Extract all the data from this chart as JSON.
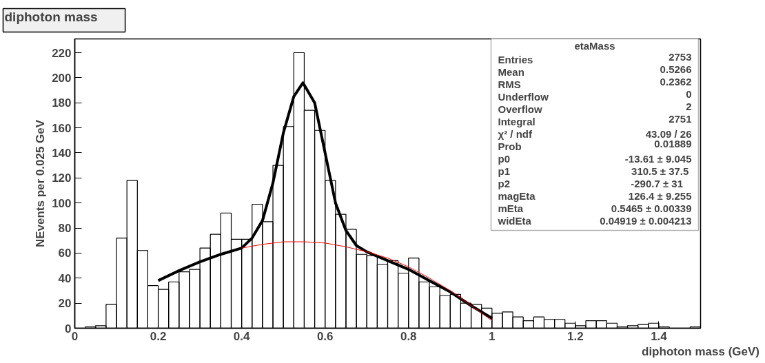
{
  "chart_data": {
    "type": "histogram",
    "title": "diphoton mass",
    "xlabel": "diphoton mass (GeV)",
    "ylabel": "NEvents per 0.025 GeV",
    "bins": [
      0,
      0.025,
      0.05,
      0.075,
      0.1,
      0.125,
      0.15,
      0.175,
      0.2,
      0.225,
      0.25,
      0.275,
      0.3,
      0.325,
      0.35,
      0.375,
      0.4,
      0.425,
      0.45,
      0.475,
      0.5,
      0.525,
      0.55,
      0.575,
      0.6,
      0.625,
      0.65,
      0.675,
      0.7,
      0.725,
      0.75,
      0.775,
      0.8,
      0.825,
      0.85,
      0.875,
      0.9,
      0.925,
      0.95,
      0.975,
      1,
      1.025,
      1.05,
      1.075,
      1.1,
      1.125,
      1.15,
      1.175,
      1.2,
      1.225,
      1.25,
      1.275,
      1.3,
      1.325,
      1.35,
      1.375,
      1.4,
      1.425,
      1.45,
      1.475,
      1.5
    ],
    "values": [
      0,
      1,
      2,
      19,
      72,
      118,
      62,
      34,
      31,
      37,
      45,
      47,
      64,
      75,
      92,
      71,
      71,
      99,
      85,
      130,
      161,
      220,
      174,
      158,
      118,
      91,
      79,
      59,
      58,
      51,
      54,
      44,
      56,
      37,
      33,
      26,
      27,
      20,
      19,
      16,
      12,
      13,
      9,
      6,
      9,
      7,
      7,
      4,
      2,
      6,
      6,
      4,
      1,
      2,
      3,
      4,
      1,
      0,
      0,
      1
    ],
    "color": "#000000",
    "series": [
      {
        "type": "line",
        "color": "#000000",
        "x": [
          0.2,
          0.25,
          0.3,
          0.35,
          0.4,
          0.425,
          0.45,
          0.475,
          0.5,
          0.525,
          0.547,
          0.575,
          0.6,
          0.625,
          0.65,
          0.675,
          0.7,
          0.75,
          0.8,
          0.85,
          0.9,
          0.95,
          1.0
        ],
        "values": [
          38,
          46,
          53,
          59,
          64,
          72,
          86,
          116,
          156,
          185,
          196,
          180,
          140,
          100,
          78,
          66,
          61,
          54,
          47,
          38,
          29,
          18,
          8
        ]
      },
      {
        "type": "line",
        "color": "#ff0000",
        "x": [
          0.4,
          0.45,
          0.5,
          0.55,
          0.6,
          0.65,
          0.7,
          0.75,
          0.8,
          0.85,
          0.9,
          0.95,
          1.0
        ],
        "values": [
          64,
          67,
          69,
          69,
          68,
          65,
          61,
          56,
          49,
          40,
          30,
          18,
          6
        ]
      }
    ],
    "xlim": [
      0,
      1.5
    ],
    "xticks": [
      0,
      0.2,
      0.4,
      0.6,
      0.8,
      1,
      1.2,
      1.4
    ],
    "ylim": [
      0,
      231
    ],
    "yticks": [
      0,
      20,
      40,
      60,
      80,
      100,
      120,
      140,
      160,
      180,
      200,
      220
    ],
    "grid": false,
    "annotations": [
      "etaMass",
      "Entries",
      "2753",
      "Mean",
      "0.5266",
      "RMS",
      "0.2362",
      "Underflow",
      "0",
      "Overflow",
      "2",
      "Integral",
      "2751",
      "χ² / ndf",
      "43.09 / 26",
      "Prob",
      "0.01889",
      "p0",
      "-13.61 ± 9.045",
      "p1",
      "310.5 ±  37.5",
      "p2",
      "-290.7 ±    31",
      "magEta",
      "126.4 ± 9.255",
      "mEta",
      "0.5465 ± 0.00339",
      "widEta",
      "0.04919 ± 0.004213"
    ]
  }
}
